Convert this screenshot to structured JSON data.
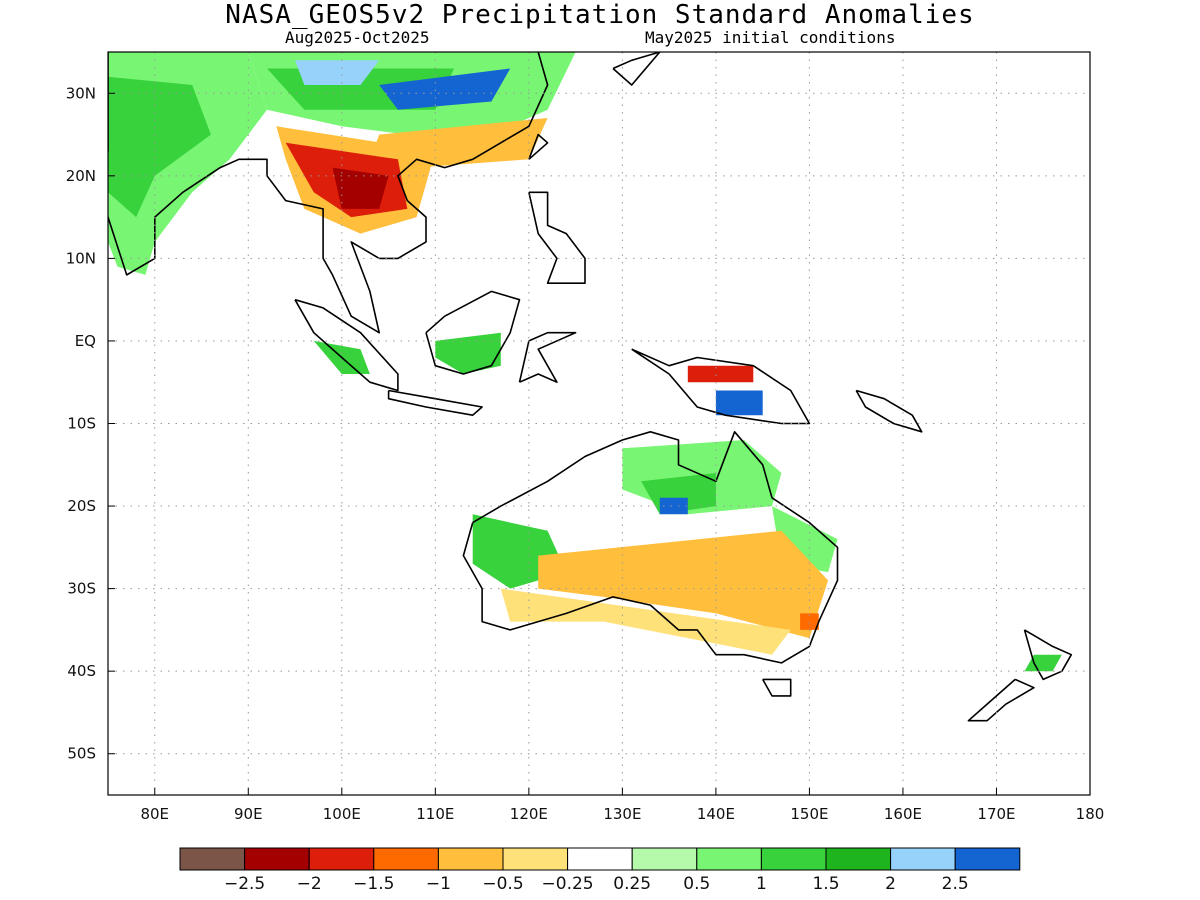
{
  "title": "NASA_GEOS5v2 Precipitation Standard Anomalies",
  "subtitle_left": "Aug2025-Oct2025",
  "subtitle_right": "May2025 initial conditions",
  "map": {
    "lon_range": [
      75,
      180
    ],
    "lat_range": [
      -55,
      35
    ],
    "lon_ticks": [
      {
        "value": 80,
        "label": "80E"
      },
      {
        "value": 90,
        "label": "90E"
      },
      {
        "value": 100,
        "label": "100E"
      },
      {
        "value": 110,
        "label": "110E"
      },
      {
        "value": 120,
        "label": "120E"
      },
      {
        "value": 130,
        "label": "130E"
      },
      {
        "value": 140,
        "label": "140E"
      },
      {
        "value": 150,
        "label": "150E"
      },
      {
        "value": 160,
        "label": "160E"
      },
      {
        "value": 170,
        "label": "170E"
      },
      {
        "value": 180,
        "label": "180"
      }
    ],
    "lat_ticks": [
      {
        "value": 30,
        "label": "30N"
      },
      {
        "value": 20,
        "label": "20N"
      },
      {
        "value": 10,
        "label": "10N"
      },
      {
        "value": 0,
        "label": "EQ"
      },
      {
        "value": -10,
        "label": "10S"
      },
      {
        "value": -20,
        "label": "20S"
      },
      {
        "value": -30,
        "label": "30S"
      },
      {
        "value": -40,
        "label": "40S"
      },
      {
        "value": -50,
        "label": "50S"
      }
    ],
    "grid": "dotted"
  },
  "colorbar": {
    "colors": [
      "#7a5548",
      "#a50000",
      "#dc1e0a",
      "#ff6a00",
      "#ffbe3c",
      "#ffe17a",
      "#ffffff",
      "#b4faaa",
      "#78f573",
      "#37d23c",
      "#1eb41e",
      "#96d2fa",
      "#1464d2"
    ],
    "labels": [
      "-2.5",
      "-2",
      "-1.5",
      "-1",
      "-0.5",
      "-0.25",
      "0.25",
      "0.5",
      "1",
      "1.5",
      "2",
      "2.5"
    ]
  },
  "regions": [
    {
      "name": "india-wet",
      "color": "#78f573",
      "pts": [
        [
          75,
          35
        ],
        [
          90,
          35
        ],
        [
          92,
          28
        ],
        [
          88,
          22
        ],
        [
          84,
          18
        ],
        [
          80,
          12
        ],
        [
          79,
          8
        ],
        [
          76,
          9
        ],
        [
          75,
          12
        ]
      ]
    },
    {
      "name": "india-wet-core",
      "color": "#37d23c",
      "pts": [
        [
          75,
          32
        ],
        [
          84,
          31
        ],
        [
          86,
          25
        ],
        [
          80,
          20
        ],
        [
          78,
          15
        ],
        [
          75,
          18
        ]
      ]
    },
    {
      "name": "himalaya-wet",
      "color": "#78f573",
      "pts": [
        [
          90,
          35
        ],
        [
          125,
          35
        ],
        [
          122,
          28
        ],
        [
          114,
          24
        ],
        [
          100,
          26
        ],
        [
          92,
          28
        ]
      ]
    },
    {
      "name": "tibet-wet-core",
      "color": "#37d23c",
      "pts": [
        [
          92,
          33
        ],
        [
          112,
          33
        ],
        [
          110,
          28
        ],
        [
          96,
          28
        ]
      ]
    },
    {
      "name": "china-blue",
      "color": "#1464d2",
      "pts": [
        [
          104,
          31
        ],
        [
          118,
          33
        ],
        [
          116,
          29
        ],
        [
          106,
          28
        ]
      ]
    },
    {
      "name": "china-lightblue",
      "color": "#96d2fa",
      "pts": [
        [
          95,
          34
        ],
        [
          104,
          34
        ],
        [
          102,
          31
        ],
        [
          96,
          31
        ]
      ]
    },
    {
      "name": "south-china-dry",
      "color": "#ffbe3c",
      "pts": [
        [
          104,
          25
        ],
        [
          122,
          27
        ],
        [
          120,
          22
        ],
        [
          108,
          21
        ],
        [
          103,
          22
        ]
      ]
    },
    {
      "name": "mainland-sea-dry",
      "color": "#ffbe3c",
      "pts": [
        [
          93,
          26
        ],
        [
          110,
          23
        ],
        [
          108,
          15
        ],
        [
          102,
          13
        ],
        [
          96,
          16
        ],
        [
          94,
          22
        ]
      ]
    },
    {
      "name": "mainland-sea-dry-core",
      "color": "#dc1e0a",
      "pts": [
        [
          94,
          24
        ],
        [
          106,
          22
        ],
        [
          107,
          16
        ],
        [
          101,
          15
        ],
        [
          97,
          18
        ]
      ]
    },
    {
      "name": "mainland-sea-dry-deep",
      "color": "#a50000",
      "pts": [
        [
          99,
          21
        ],
        [
          105,
          20
        ],
        [
          104,
          16
        ],
        [
          100,
          16
        ]
      ]
    },
    {
      "name": "borneo-wet",
      "color": "#37d23c",
      "pts": [
        [
          110,
          0
        ],
        [
          117,
          1
        ],
        [
          117,
          -3
        ],
        [
          113,
          -4
        ],
        [
          110,
          -2
        ]
      ]
    },
    {
      "name": "sumatra-wet",
      "color": "#37d23c",
      "pts": [
        [
          97,
          0
        ],
        [
          102,
          -1
        ],
        [
          103,
          -4
        ],
        [
          100,
          -4
        ]
      ]
    },
    {
      "name": "png-dry",
      "color": "#dc1e0a",
      "pts": [
        [
          137,
          -3
        ],
        [
          144,
          -3
        ],
        [
          144,
          -5
        ],
        [
          137,
          -5
        ]
      ]
    },
    {
      "name": "png-wet",
      "color": "#1464d2",
      "pts": [
        [
          140,
          -6
        ],
        [
          145,
          -6
        ],
        [
          145,
          -9
        ],
        [
          140,
          -9
        ]
      ]
    },
    {
      "name": "aus-north-wet",
      "color": "#78f573",
      "pts": [
        [
          130,
          -13
        ],
        [
          143,
          -12
        ],
        [
          147,
          -16
        ],
        [
          146,
          -20
        ],
        [
          137,
          -21
        ],
        [
          130,
          -18
        ]
      ]
    },
    {
      "name": "aus-north-wet-core",
      "color": "#37d23c",
      "pts": [
        [
          132,
          -17
        ],
        [
          140,
          -16
        ],
        [
          140,
          -20
        ],
        [
          134,
          -21
        ]
      ]
    },
    {
      "name": "aus-wet-blue",
      "color": "#1464d2",
      "pts": [
        [
          134,
          -19
        ],
        [
          137,
          -19
        ],
        [
          137,
          -21
        ],
        [
          134,
          -21
        ]
      ]
    },
    {
      "name": "aus-west-wet",
      "color": "#37d23c",
      "pts": [
        [
          114,
          -21
        ],
        [
          122,
          -23
        ],
        [
          124,
          -28
        ],
        [
          118,
          -30
        ],
        [
          114,
          -27
        ]
      ]
    },
    {
      "name": "aus-east-wet",
      "color": "#78f573",
      "pts": [
        [
          146,
          -20
        ],
        [
          153,
          -24
        ],
        [
          152,
          -28
        ],
        [
          147,
          -27
        ]
      ]
    },
    {
      "name": "aus-interior-dry",
      "color": "#ffbe3c",
      "pts": [
        [
          121,
          -26
        ],
        [
          147,
          -23
        ],
        [
          152,
          -29
        ],
        [
          150,
          -36
        ],
        [
          140,
          -33
        ],
        [
          128,
          -31
        ],
        [
          121,
          -30
        ]
      ]
    },
    {
      "name": "aus-interior-light",
      "color": "#ffe17a",
      "pts": [
        [
          117,
          -30
        ],
        [
          148,
          -35
        ],
        [
          146,
          -38
        ],
        [
          128,
          -34
        ],
        [
          118,
          -34
        ]
      ]
    },
    {
      "name": "aus-se-red",
      "color": "#ff6a00",
      "pts": [
        [
          149,
          -33
        ],
        [
          151,
          -33
        ],
        [
          151,
          -35
        ],
        [
          149,
          -35
        ]
      ]
    },
    {
      "name": "nz-wet",
      "color": "#37d23c",
      "pts": [
        [
          174,
          -38
        ],
        [
          177,
          -38
        ],
        [
          176,
          -40
        ],
        [
          173,
          -40
        ]
      ]
    }
  ],
  "coastlines": [
    {
      "name": "india-coast",
      "pts": [
        [
          75,
          35
        ],
        [
          75,
          23
        ],
        [
          73,
          21
        ],
        [
          75,
          15
        ],
        [
          77,
          8
        ],
        [
          80,
          10
        ],
        [
          80,
          15
        ],
        [
          83,
          18
        ],
        [
          87,
          21
        ],
        [
          89,
          22
        ],
        [
          92,
          22
        ],
        [
          92,
          20
        ],
        [
          94,
          17
        ],
        [
          98,
          16
        ],
        [
          98,
          10
        ],
        [
          99,
          8
        ],
        [
          101,
          3
        ],
        [
          104,
          1
        ],
        [
          103,
          6
        ],
        [
          101,
          12
        ],
        [
          104,
          10
        ],
        [
          106,
          10
        ],
        [
          109,
          12
        ],
        [
          109,
          15
        ],
        [
          107,
          17
        ],
        [
          106,
          20
        ],
        [
          108,
          22
        ],
        [
          111,
          21
        ],
        [
          114,
          22
        ],
        [
          117,
          24
        ],
        [
          120,
          26
        ],
        [
          122,
          31
        ],
        [
          121,
          35
        ]
      ]
    },
    {
      "name": "sumatra-coast",
      "pts": [
        [
          95,
          5
        ],
        [
          98,
          4
        ],
        [
          102,
          1
        ],
        [
          106,
          -4
        ],
        [
          106,
          -6
        ],
        [
          103,
          -5
        ],
        [
          100,
          -2
        ],
        [
          97,
          1
        ],
        [
          95,
          5
        ]
      ]
    },
    {
      "name": "java-coast",
      "pts": [
        [
          105,
          -6
        ],
        [
          110,
          -7
        ],
        [
          115,
          -8
        ],
        [
          114,
          -9
        ],
        [
          109,
          -8
        ],
        [
          105,
          -7
        ],
        [
          105,
          -6
        ]
      ]
    },
    {
      "name": "borneo-coast",
      "pts": [
        [
          109,
          1
        ],
        [
          111,
          3
        ],
        [
          116,
          6
        ],
        [
          119,
          5
        ],
        [
          118,
          1
        ],
        [
          116,
          -3
        ],
        [
          113,
          -4
        ],
        [
          110,
          -3
        ],
        [
          109,
          1
        ]
      ]
    },
    {
      "name": "sulawesi-coast",
      "pts": [
        [
          119,
          -5
        ],
        [
          120,
          0
        ],
        [
          122,
          1
        ],
        [
          125,
          1
        ],
        [
          121,
          -1
        ],
        [
          123,
          -5
        ],
        [
          121,
          -4
        ],
        [
          119,
          -5
        ]
      ]
    },
    {
      "name": "philippines-coast",
      "pts": [
        [
          120,
          18
        ],
        [
          122,
          18
        ],
        [
          122,
          14
        ],
        [
          124,
          13
        ],
        [
          126,
          10
        ],
        [
          126,
          7
        ],
        [
          122,
          7
        ],
        [
          123,
          10
        ],
        [
          121,
          13
        ],
        [
          120,
          18
        ]
      ]
    },
    {
      "name": "taiwan-coast",
      "pts": [
        [
          120,
          22
        ],
        [
          121,
          25
        ],
        [
          122,
          24
        ],
        [
          120,
          22
        ]
      ]
    },
    {
      "name": "png-coast",
      "pts": [
        [
          131,
          -1
        ],
        [
          135,
          -3
        ],
        [
          138,
          -2
        ],
        [
          144,
          -3
        ],
        [
          148,
          -6
        ],
        [
          150,
          -10
        ],
        [
          147,
          -10
        ],
        [
          141,
          -9
        ],
        [
          138,
          -8
        ],
        [
          135,
          -4
        ],
        [
          131,
          -1
        ]
      ]
    },
    {
      "name": "australia-coast",
      "pts": [
        [
          114,
          -22
        ],
        [
          117,
          -20
        ],
        [
          122,
          -17
        ],
        [
          126,
          -14
        ],
        [
          130,
          -12
        ],
        [
          133,
          -11
        ],
        [
          136,
          -12
        ],
        [
          136,
          -15
        ],
        [
          140,
          -17
        ],
        [
          142,
          -11
        ],
        [
          145,
          -15
        ],
        [
          146,
          -19
        ],
        [
          150,
          -22
        ],
        [
          153,
          -25
        ],
        [
          153,
          -29
        ],
        [
          151,
          -34
        ],
        [
          150,
          -37
        ],
        [
          147,
          -39
        ],
        [
          143,
          -38
        ],
        [
          140,
          -38
        ],
        [
          138,
          -35
        ],
        [
          136,
          -35
        ],
        [
          133,
          -32
        ],
        [
          129,
          -31
        ],
        [
          124,
          -33
        ],
        [
          118,
          -35
        ],
        [
          115,
          -34
        ],
        [
          115,
          -30
        ],
        [
          113,
          -26
        ],
        [
          114,
          -22
        ]
      ]
    },
    {
      "name": "tasmania-coast",
      "pts": [
        [
          145,
          -41
        ],
        [
          148,
          -41
        ],
        [
          148,
          -43
        ],
        [
          146,
          -43
        ],
        [
          145,
          -41
        ]
      ]
    },
    {
      "name": "nz-north-coast",
      "pts": [
        [
          173,
          -35
        ],
        [
          176,
          -37
        ],
        [
          178,
          -38
        ],
        [
          177,
          -40
        ],
        [
          175,
          -41
        ],
        [
          174,
          -39
        ],
        [
          173,
          -35
        ]
      ]
    },
    {
      "name": "nz-south-coast",
      "pts": [
        [
          172,
          -41
        ],
        [
          174,
          -42
        ],
        [
          171,
          -44
        ],
        [
          169,
          -46
        ],
        [
          167,
          -46
        ],
        [
          168,
          -45
        ],
        [
          172,
          -41
        ]
      ]
    },
    {
      "name": "solomons-coast",
      "pts": [
        [
          155,
          -6
        ],
        [
          158,
          -7
        ],
        [
          161,
          -9
        ],
        [
          162,
          -11
        ],
        [
          159,
          -10
        ],
        [
          156,
          -8
        ],
        [
          155,
          -6
        ]
      ]
    },
    {
      "name": "japan-coast",
      "pts": [
        [
          129,
          33
        ],
        [
          131,
          34
        ],
        [
          134,
          35
        ],
        [
          131,
          31
        ],
        [
          129,
          33
        ]
      ]
    }
  ]
}
